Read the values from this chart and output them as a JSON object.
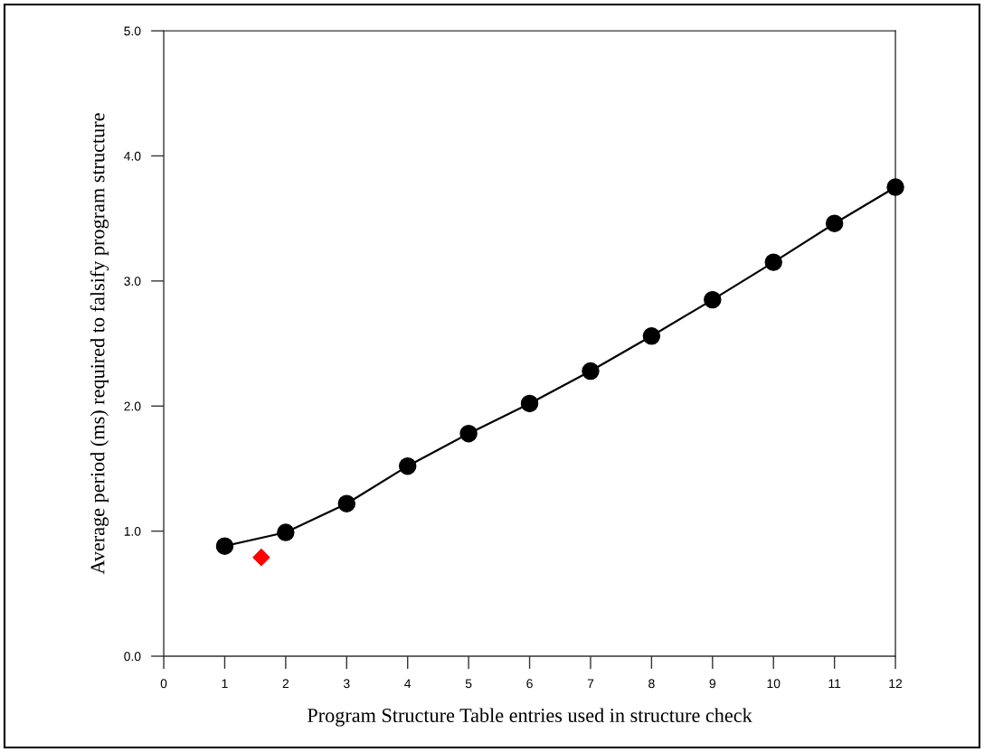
{
  "chart_data": {
    "type": "line",
    "xlabel": "Program Structure Table entries used in structure check",
    "ylabel": "Average period (ms) required to falsify program structure",
    "xlim": [
      0,
      12
    ],
    "ylim": [
      0,
      5
    ],
    "xticks": [
      0,
      1,
      2,
      3,
      4,
      5,
      6,
      7,
      8,
      9,
      10,
      11,
      12
    ],
    "yticks": [
      {
        "value": 0,
        "label": "0.0"
      },
      {
        "value": 1,
        "label": "1.0"
      },
      {
        "value": 2,
        "label": "2.0"
      },
      {
        "value": 3,
        "label": "3.0"
      },
      {
        "value": 4,
        "label": "4.0"
      },
      {
        "value": 5,
        "label": "5.0"
      }
    ],
    "series": [
      {
        "color": "#000000",
        "marker": "circle",
        "line_style": "solid",
        "x": [
          1,
          2,
          3,
          4,
          5,
          6,
          7,
          8,
          9,
          10,
          11,
          12
        ],
        "values": [
          0.88,
          0.99,
          1.22,
          1.52,
          1.78,
          2.02,
          2.28,
          2.56,
          2.85,
          3.15,
          3.46,
          3.75
        ]
      },
      {
        "type": "scatter",
        "color": "#ff0000",
        "marker": "diamond",
        "x": [
          1.6
        ],
        "values": [
          0.79
        ]
      }
    ]
  }
}
